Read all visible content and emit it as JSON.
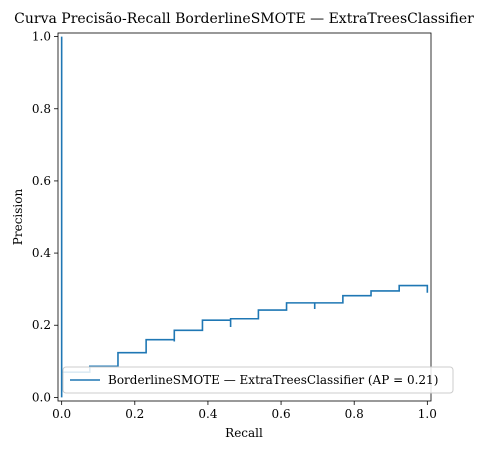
{
  "chart_data": {
    "type": "line",
    "title": "Curva Precisão-Recall BorderlineSMOTE — ExtraTreesClassifier",
    "xlabel": "Recall",
    "ylabel": "Precision",
    "xlim": [
      -0.01,
      1.01
    ],
    "ylim": [
      -0.01,
      1.01
    ],
    "xticks": [
      0.0,
      0.2,
      0.4,
      0.6,
      0.8,
      1.0
    ],
    "yticks": [
      0.0,
      0.2,
      0.4,
      0.6,
      0.8,
      1.0
    ],
    "xtick_labels": [
      "0.0",
      "0.2",
      "0.4",
      "0.6",
      "0.8",
      "1.0"
    ],
    "ytick_labels": [
      "0.0",
      "0.2",
      "0.4",
      "0.6",
      "0.8",
      "1.0"
    ],
    "grid": false,
    "legend_position": "lower-right",
    "series": [
      {
        "name": "BorderlineSMOTE — ExtraTreesClassifier (AP = 0.21)",
        "color": "#1f77b4",
        "drawstyle": "steps-post",
        "x": [
          0.0,
          0.0,
          0.0,
          0.0,
          0.077,
          0.077,
          0.154,
          0.154,
          0.231,
          0.231,
          0.308,
          0.308,
          0.308,
          0.385,
          0.385,
          0.462,
          0.462,
          0.462,
          0.538,
          0.538,
          0.615,
          0.615,
          0.692,
          0.692,
          0.692,
          0.769,
          0.769,
          0.846,
          0.846,
          0.923,
          0.923,
          1.0,
          1.0
        ],
        "y": [
          1.0,
          0.0,
          0.07,
          0.07,
          0.07,
          0.086,
          0.086,
          0.124,
          0.124,
          0.16,
          0.16,
          0.155,
          0.186,
          0.186,
          0.214,
          0.214,
          0.195,
          0.218,
          0.218,
          0.242,
          0.242,
          0.262,
          0.262,
          0.245,
          0.262,
          0.262,
          0.282,
          0.282,
          0.295,
          0.295,
          0.31,
          0.31,
          0.29
        ]
      }
    ]
  }
}
